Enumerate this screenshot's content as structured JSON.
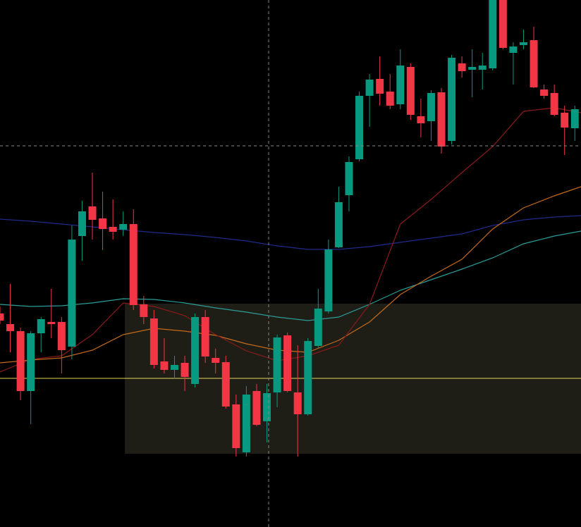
{
  "chart_data": {
    "type": "candlestick",
    "xlim": [
      0,
      56.6
    ],
    "ylim": [
      0,
      748
    ],
    "up_color": "#089981",
    "down_color": "#f23645",
    "x": [
      0,
      1,
      2,
      3,
      4,
      5,
      6,
      7,
      8,
      9,
      10,
      11,
      12,
      13,
      14,
      15,
      16,
      17,
      18,
      19,
      20,
      21,
      22,
      23,
      24,
      25,
      26,
      27,
      28,
      29,
      30,
      31,
      32,
      33,
      34,
      35,
      36,
      37,
      38,
      39,
      40,
      41,
      42,
      43,
      44,
      45,
      46,
      47,
      48,
      49,
      50,
      51,
      52,
      53,
      54,
      55,
      56
    ],
    "open": [
      303,
      288,
      278,
      193,
      275,
      291,
      291,
      256,
      413,
      455,
      438,
      426,
      422,
      430,
      316,
      296,
      235,
      223,
      233,
      203,
      298,
      240,
      234,
      174,
      106,
      193,
      150,
      191,
      272,
      191,
      160,
      257,
      306,
      397,
      471,
      522,
      612,
      636,
      618,
      600,
      653,
      583,
      576,
      617,
      548,
      658,
      649,
      649,
      651,
      753,
      673,
      684,
      691,
      621,
      616,
      588,
      566
    ],
    "high": [
      313,
      345,
      283,
      278,
      298,
      338,
      298,
      428,
      463,
      503,
      476,
      465,
      448,
      451,
      328,
      308,
      268,
      243,
      243,
      303,
      308,
      253,
      243,
      188,
      200,
      203,
      203,
      273,
      276,
      258,
      268,
      338,
      408,
      483,
      526,
      618,
      643,
      668,
      643,
      678,
      658,
      608,
      620,
      623,
      670,
      668,
      678,
      673,
      758,
      758,
      688,
      706,
      710,
      628,
      628,
      598,
      598
    ],
    "low": [
      288,
      248,
      180,
      146,
      248,
      268,
      218,
      238,
      378,
      408,
      393,
      408,
      413,
      308,
      288,
      225,
      218,
      210,
      193,
      198,
      233,
      218,
      168,
      100,
      100,
      143,
      120,
      170,
      191,
      100,
      158,
      253,
      303,
      396,
      448,
      519,
      568,
      598,
      593,
      593,
      578,
      553,
      548,
      530,
      543,
      638,
      610,
      621,
      648,
      678,
      628,
      678,
      623,
      608,
      583,
      528,
      548
    ],
    "close": [
      293,
      278,
      193,
      275,
      295,
      288,
      251,
      408,
      448,
      436,
      423,
      419,
      430,
      315,
      298,
      230,
      223,
      230,
      213,
      298,
      242,
      233,
      171,
      112,
      188,
      145,
      190,
      269,
      193,
      160,
      264,
      310,
      394,
      461,
      518,
      612,
      635,
      615,
      598,
      655,
      585,
      573,
      616,
      540,
      666,
      647,
      653,
      655,
      753,
      680,
      682,
      688,
      624,
      612,
      585,
      567,
      593
    ],
    "series": [
      {
        "color": "#1f2a8a",
        "x": [
          0,
          3,
          6,
          9,
          12,
          15,
          18,
          21,
          24,
          27,
          30,
          33,
          36,
          39,
          42,
          45,
          48,
          51,
          54,
          56.6
        ],
        "values": [
          437,
          434,
          430,
          426,
          422,
          418,
          415,
          411,
          406,
          399,
          394,
          394,
          398,
          404,
          410,
          416,
          428,
          436,
          440,
          442
        ]
      },
      {
        "color": "#2a9d9a",
        "x": [
          0,
          3,
          6,
          9,
          12,
          15,
          18,
          21,
          24,
          27,
          30,
          33,
          36,
          39,
          42,
          45,
          48,
          51,
          54,
          56.6
        ],
        "values": [
          316,
          313,
          314,
          318,
          324,
          323,
          318,
          311,
          305,
          298,
          293,
          298,
          316,
          336,
          351,
          366,
          382,
          402,
          413,
          420
        ]
      },
      {
        "color": "#c46a1a",
        "x": [
          0,
          3,
          6,
          9,
          12,
          15,
          18,
          21,
          24,
          27,
          30,
          33,
          36,
          39,
          42,
          45,
          48,
          51,
          54,
          56.6
        ],
        "values": [
          233,
          237,
          240,
          251,
          273,
          282,
          278,
          272,
          260,
          251,
          248,
          265,
          291,
          330,
          356,
          380,
          423,
          453,
          470,
          483
        ]
      },
      {
        "color": "#8b1a1a",
        "x": [
          0,
          3,
          6,
          9,
          12,
          15,
          18,
          21,
          24,
          27,
          30,
          33,
          36,
          39,
          42,
          45,
          48,
          51,
          54,
          56.6
        ],
        "values": [
          220,
          238,
          243,
          273,
          318,
          313,
          300,
          273,
          250,
          236,
          243,
          258,
          316,
          430,
          465,
          503,
          540,
          590,
          595,
          588
        ]
      }
    ],
    "zone": {
      "x0": 12.16,
      "top": 317,
      "bottom": 104,
      "color": "#1f1e16"
    },
    "hline": {
      "value": 211,
      "color": "#e6d55a"
    },
    "crosshair": {
      "x": 26.17,
      "y": 541,
      "color": "#888888"
    }
  }
}
